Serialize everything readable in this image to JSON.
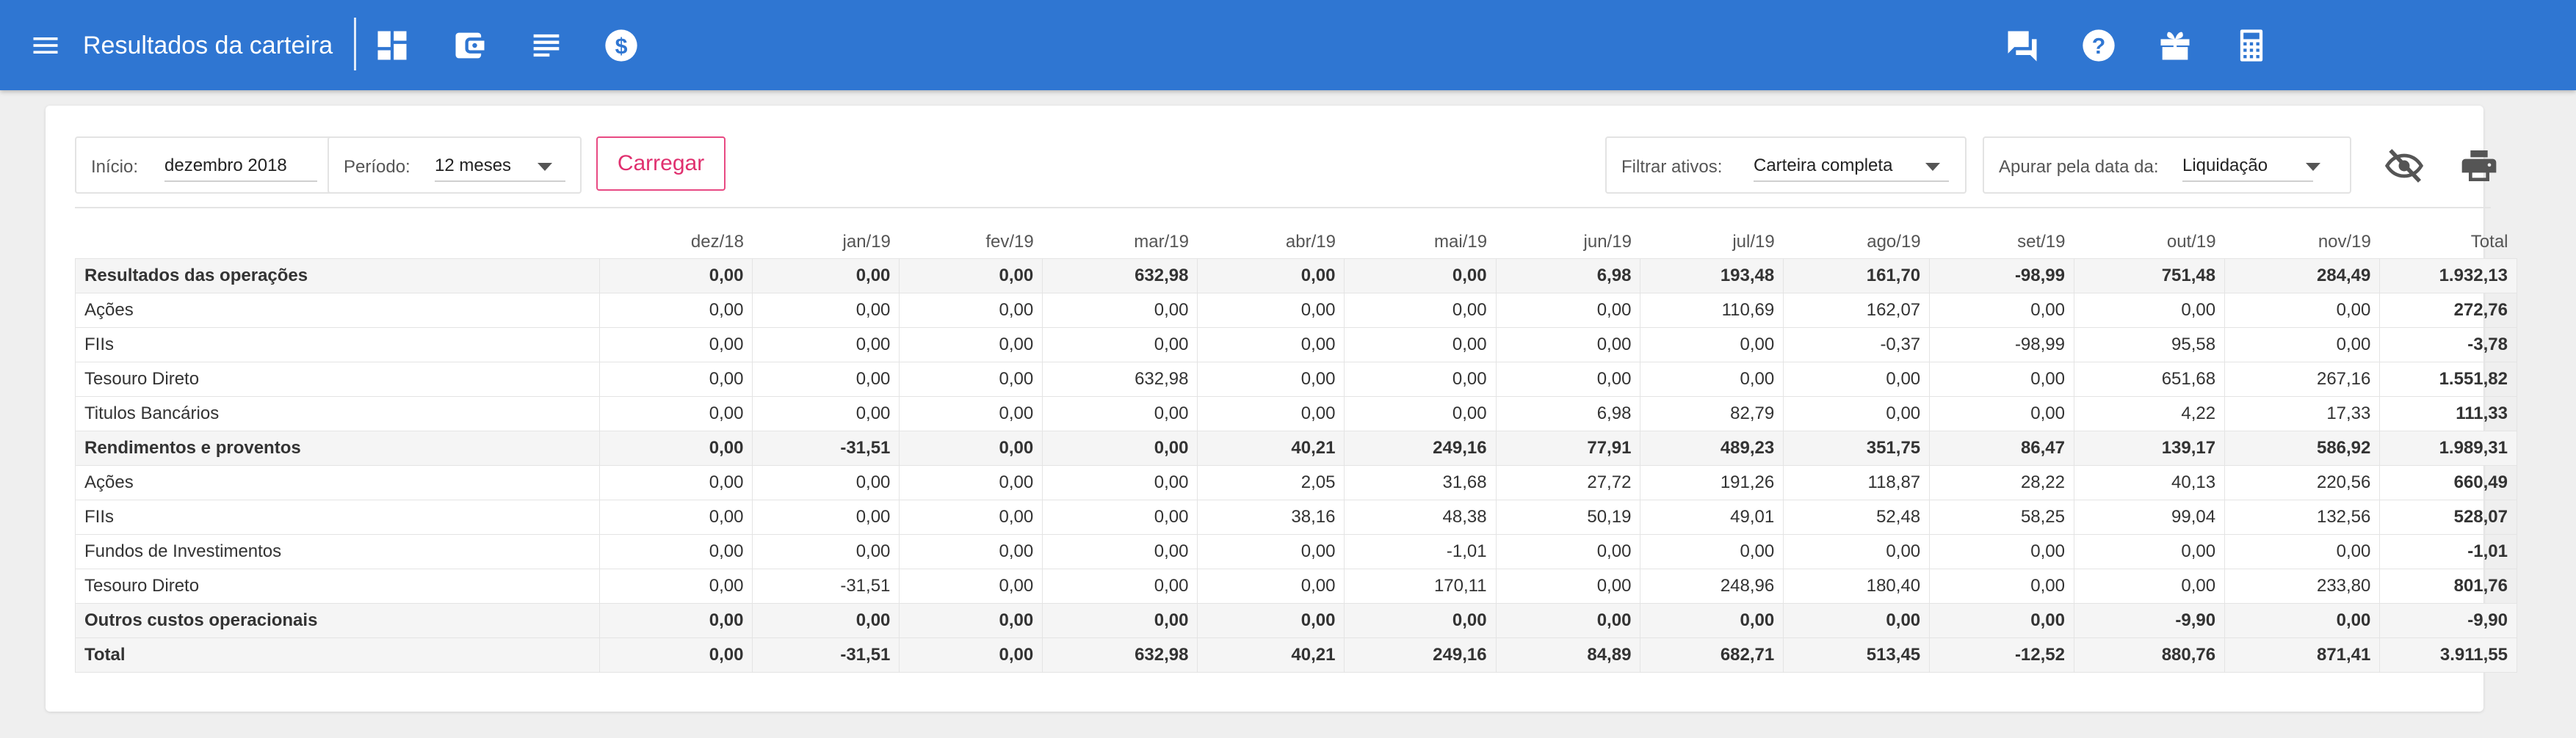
{
  "app": {
    "title": "Resultados da carteira"
  },
  "toolbar": {
    "left_icons": [
      "dashboard-icon",
      "wallet-icon",
      "list-icon",
      "dollar-icon"
    ],
    "right_icons": [
      "chat-icon",
      "help-icon",
      "gift-icon",
      "calculator-icon"
    ]
  },
  "filters": {
    "inicio": {
      "label": "Início:",
      "value": "dezembro 2018"
    },
    "periodo": {
      "label": "Período:",
      "value": "12 meses"
    },
    "carregar_label": "Carregar",
    "filtrar": {
      "label": "Filtrar ativos:",
      "value": "Carteira completa"
    },
    "apurar": {
      "label": "Apurar pela data da:",
      "value": "Liquidação"
    }
  },
  "colors": {
    "accent": "#2f76d2",
    "positive": "#3a9a2c",
    "negative": "#d53a4a",
    "button": "#e0306f"
  },
  "table": {
    "columns": [
      "",
      "dez/18",
      "jan/19",
      "fev/19",
      "mar/19",
      "abr/19",
      "mai/19",
      "jun/19",
      "jul/19",
      "ago/19",
      "set/19",
      "out/19",
      "nov/19",
      "Total"
    ],
    "rows": [
      {
        "label": "Resultados das operações",
        "group": true,
        "values": [
          "0,00",
          "0,00",
          "0,00",
          "632,98",
          "0,00",
          "0,00",
          "6,98",
          "193,48",
          "161,70",
          "-98,99",
          "751,48",
          "284,49",
          "1.932,13"
        ]
      },
      {
        "label": "Ações",
        "group": false,
        "values": [
          "0,00",
          "0,00",
          "0,00",
          "0,00",
          "0,00",
          "0,00",
          "0,00",
          "110,69",
          "162,07",
          "0,00",
          "0,00",
          "0,00",
          "272,76"
        ]
      },
      {
        "label": "FIIs",
        "group": false,
        "values": [
          "0,00",
          "0,00",
          "0,00",
          "0,00",
          "0,00",
          "0,00",
          "0,00",
          "0,00",
          "-0,37",
          "-98,99",
          "95,58",
          "0,00",
          "-3,78"
        ]
      },
      {
        "label": "Tesouro Direto",
        "group": false,
        "values": [
          "0,00",
          "0,00",
          "0,00",
          "632,98",
          "0,00",
          "0,00",
          "0,00",
          "0,00",
          "0,00",
          "0,00",
          "651,68",
          "267,16",
          "1.551,82"
        ]
      },
      {
        "label": "Titulos Bancários",
        "group": false,
        "values": [
          "0,00",
          "0,00",
          "0,00",
          "0,00",
          "0,00",
          "0,00",
          "6,98",
          "82,79",
          "0,00",
          "0,00",
          "4,22",
          "17,33",
          "111,33"
        ]
      },
      {
        "label": "Rendimentos e proventos",
        "group": true,
        "values": [
          "0,00",
          "-31,51",
          "0,00",
          "0,00",
          "40,21",
          "249,16",
          "77,91",
          "489,23",
          "351,75",
          "86,47",
          "139,17",
          "586,92",
          "1.989,31"
        ]
      },
      {
        "label": "Ações",
        "group": false,
        "values": [
          "0,00",
          "0,00",
          "0,00",
          "0,00",
          "2,05",
          "31,68",
          "27,72",
          "191,26",
          "118,87",
          "28,22",
          "40,13",
          "220,56",
          "660,49"
        ]
      },
      {
        "label": "FIIs",
        "group": false,
        "values": [
          "0,00",
          "0,00",
          "0,00",
          "0,00",
          "38,16",
          "48,38",
          "50,19",
          "49,01",
          "52,48",
          "58,25",
          "99,04",
          "132,56",
          "528,07"
        ]
      },
      {
        "label": "Fundos de Investimentos",
        "group": false,
        "values": [
          "0,00",
          "0,00",
          "0,00",
          "0,00",
          "0,00",
          "-1,01",
          "0,00",
          "0,00",
          "0,00",
          "0,00",
          "0,00",
          "0,00",
          "-1,01"
        ]
      },
      {
        "label": "Tesouro Direto",
        "group": false,
        "values": [
          "0,00",
          "-31,51",
          "0,00",
          "0,00",
          "0,00",
          "170,11",
          "0,00",
          "248,96",
          "180,40",
          "0,00",
          "0,00",
          "233,80",
          "801,76"
        ]
      },
      {
        "label": "Outros custos operacionais",
        "group": true,
        "values": [
          "0,00",
          "0,00",
          "0,00",
          "0,00",
          "0,00",
          "0,00",
          "0,00",
          "0,00",
          "0,00",
          "0,00",
          "-9,90",
          "0,00",
          "-9,90"
        ]
      },
      {
        "label": "Total",
        "group": true,
        "values": [
          "0,00",
          "-31,51",
          "0,00",
          "632,98",
          "40,21",
          "249,16",
          "84,89",
          "682,71",
          "513,45",
          "-12,52",
          "880,76",
          "871,41",
          "3.911,55"
        ]
      }
    ]
  }
}
